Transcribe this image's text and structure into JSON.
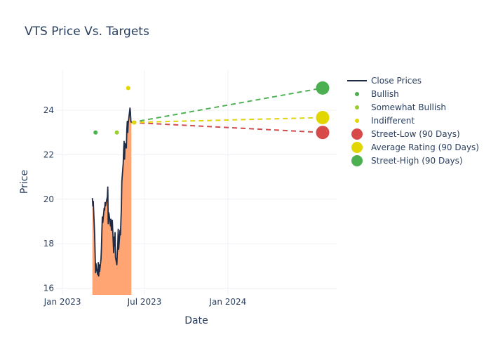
{
  "chart_data": {
    "type": "line",
    "title": "VTS Price Vs. Targets",
    "xlabel": "Date",
    "ylabel": "Price",
    "x_ticks": [
      "Jan 2023",
      "Jul 2023",
      "Jan 2024"
    ],
    "y_ticks": [
      16,
      18,
      20,
      22,
      24
    ],
    "xlim": [
      "2022-12-18",
      "2024-08-28"
    ],
    "ylim": [
      15.7,
      25.8
    ],
    "close_prices": {
      "name": "Close Prices",
      "color": "#1f2a44",
      "fill_color": "#ffa574",
      "points": [
        [
          "2023-03-08",
          20.05
        ],
        [
          "2023-03-09",
          19.7
        ],
        [
          "2023-03-10",
          19.9
        ],
        [
          "2023-03-13",
          18.4
        ],
        [
          "2023-03-14",
          17.6
        ],
        [
          "2023-03-15",
          16.7
        ],
        [
          "2023-03-16",
          17.1
        ],
        [
          "2023-03-17",
          16.9
        ],
        [
          "2023-03-20",
          16.6
        ],
        [
          "2023-03-21",
          17.15
        ],
        [
          "2023-03-22",
          16.55
        ],
        [
          "2023-03-23",
          17.05
        ],
        [
          "2023-03-24",
          16.75
        ],
        [
          "2023-03-27",
          17.3
        ],
        [
          "2023-03-28",
          17.8
        ],
        [
          "2023-03-29",
          18.6
        ],
        [
          "2023-03-30",
          19.2
        ],
        [
          "2023-03-31",
          18.95
        ],
        [
          "2023-04-03",
          19.6
        ],
        [
          "2023-04-04",
          19.5
        ],
        [
          "2023-04-05",
          19.85
        ],
        [
          "2023-04-06",
          19.7
        ],
        [
          "2023-04-10",
          20.1
        ],
        [
          "2023-04-11",
          20.55
        ],
        [
          "2023-04-12",
          18.9
        ],
        [
          "2023-04-13",
          19.4
        ],
        [
          "2023-04-14",
          19.3
        ],
        [
          "2023-04-17",
          18.8
        ],
        [
          "2023-04-18",
          19.1
        ],
        [
          "2023-04-19",
          18.6
        ],
        [
          "2023-04-20",
          18.9
        ],
        [
          "2023-04-21",
          19.05
        ],
        [
          "2023-04-24",
          17.6
        ],
        [
          "2023-04-25",
          18.3
        ],
        [
          "2023-04-26",
          17.9
        ],
        [
          "2023-04-27",
          18.5
        ],
        [
          "2023-04-28",
          17.4
        ],
        [
          "2023-05-01",
          17.05
        ],
        [
          "2023-05-02",
          17.6
        ],
        [
          "2023-05-03",
          17.9
        ],
        [
          "2023-05-04",
          18.65
        ],
        [
          "2023-05-05",
          17.75
        ],
        [
          "2023-05-08",
          18.6
        ],
        [
          "2023-05-09",
          18.4
        ],
        [
          "2023-05-10",
          19.05
        ],
        [
          "2023-05-11",
          19.6
        ],
        [
          "2023-05-12",
          20.8
        ],
        [
          "2023-05-15",
          21.6
        ],
        [
          "2023-05-16",
          22.2
        ],
        [
          "2023-05-17",
          22.6
        ],
        [
          "2023-05-18",
          21.8
        ],
        [
          "2023-05-19",
          22.5
        ],
        [
          "2023-05-22",
          22.3
        ],
        [
          "2023-05-23",
          23.1
        ],
        [
          "2023-05-24",
          23.5
        ],
        [
          "2023-05-25",
          23.0
        ],
        [
          "2023-05-26",
          23.4
        ],
        [
          "2023-05-30",
          24.1
        ],
        [
          "2023-05-31",
          23.9
        ],
        [
          "2023-06-01",
          23.5
        ],
        [
          "2023-06-02",
          23.45
        ]
      ]
    },
    "ratings": [
      {
        "name": "Bullish",
        "color": "#4caf50",
        "points": [
          [
            "2023-03-15",
            23.0
          ]
        ]
      },
      {
        "name": "Somewhat Bullish",
        "color": "#9acd32",
        "points": [
          [
            "2023-05-01",
            23.0
          ]
        ]
      },
      {
        "name": "Indifferent",
        "color": "#e2d600",
        "points": [
          [
            "2023-05-26",
            25.0
          ],
          [
            "2023-06-08",
            23.45
          ]
        ]
      }
    ],
    "targets": {
      "start": [
        "2023-06-02",
        23.45
      ],
      "end_date": "2024-07-28",
      "series": [
        {
          "name": "Street-Low (90 Days)",
          "color": "#d84a4a",
          "value": 23.0
        },
        {
          "name": "Average Rating (90 Days)",
          "color": "#e2d600",
          "value": 23.67
        },
        {
          "name": "Street-High (90 Days)",
          "color": "#4caf50",
          "value": 25.0
        }
      ]
    },
    "legend": [
      "Close Prices",
      "Bullish",
      "Somewhat Bullish",
      "Indifferent",
      "Street-Low (90 Days)",
      "Average Rating (90 Days)",
      "Street-High (90 Days)"
    ],
    "legend_position": "top-right",
    "grid": true
  }
}
